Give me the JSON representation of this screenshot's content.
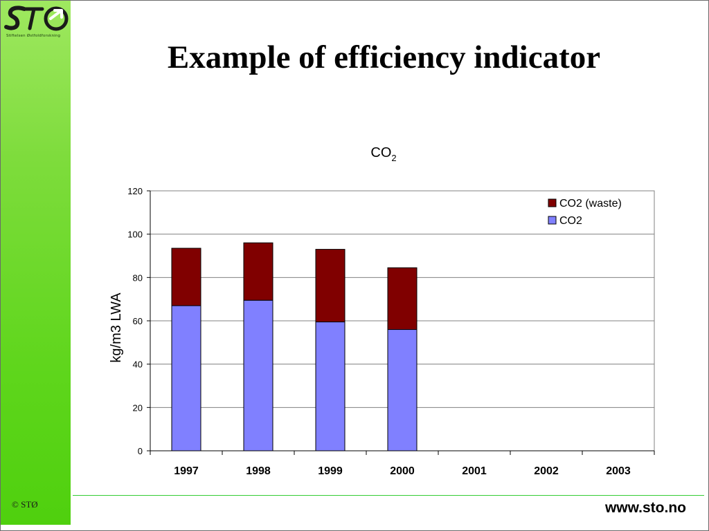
{
  "brand": {
    "logo_text": "STØ",
    "tagline": "Stiftelsen Østfoldforskning",
    "copyright": "© STØ",
    "url": "www.sto.no"
  },
  "slide": {
    "title": "Example of efficiency indicator"
  },
  "colors": {
    "sidebar_green": "#5fd61c",
    "footer_line": "#33cc33",
    "co2_waste": "#800000",
    "co2": "#8080ff"
  },
  "chart_data": {
    "type": "bar",
    "stacked": true,
    "title": "CO",
    "title_subscript": "2",
    "xlabel": "",
    "ylabel": "kg/m3 LWA",
    "categories": [
      "1997",
      "1998",
      "1999",
      "2000",
      "2001",
      "2002",
      "2003"
    ],
    "series": [
      {
        "name": "CO2",
        "color": "#8080ff",
        "values": [
          67,
          69.5,
          59.5,
          56,
          null,
          null,
          null
        ]
      },
      {
        "name": "CO2 (waste)",
        "color": "#800000",
        "values": [
          26.5,
          26.5,
          33.5,
          28.5,
          null,
          null,
          null
        ]
      }
    ],
    "ylim": [
      0,
      120
    ],
    "yticks": [
      "0",
      "20",
      "40",
      "60",
      "80",
      "100",
      "120"
    ],
    "grid": true,
    "legend_position": "top-right"
  }
}
